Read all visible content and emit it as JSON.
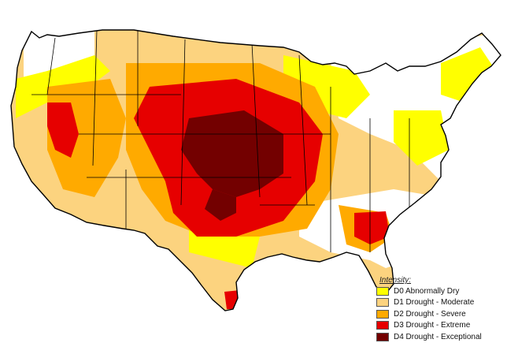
{
  "legend": {
    "title": "Intensity:",
    "items": [
      {
        "label": "D0 Abnormally Dry",
        "color": "#ffff00"
      },
      {
        "label": "D1 Drought - Moderate",
        "color": "#fcd37f"
      },
      {
        "label": "D2 Drought - Severe",
        "color": "#ffaa00"
      },
      {
        "label": "D3 Drought - Extreme",
        "color": "#e60000"
      },
      {
        "label": "D4 Drought - Exceptional",
        "color": "#730000"
      }
    ]
  },
  "colors": {
    "none": "#ffffff",
    "border": "#000000"
  }
}
